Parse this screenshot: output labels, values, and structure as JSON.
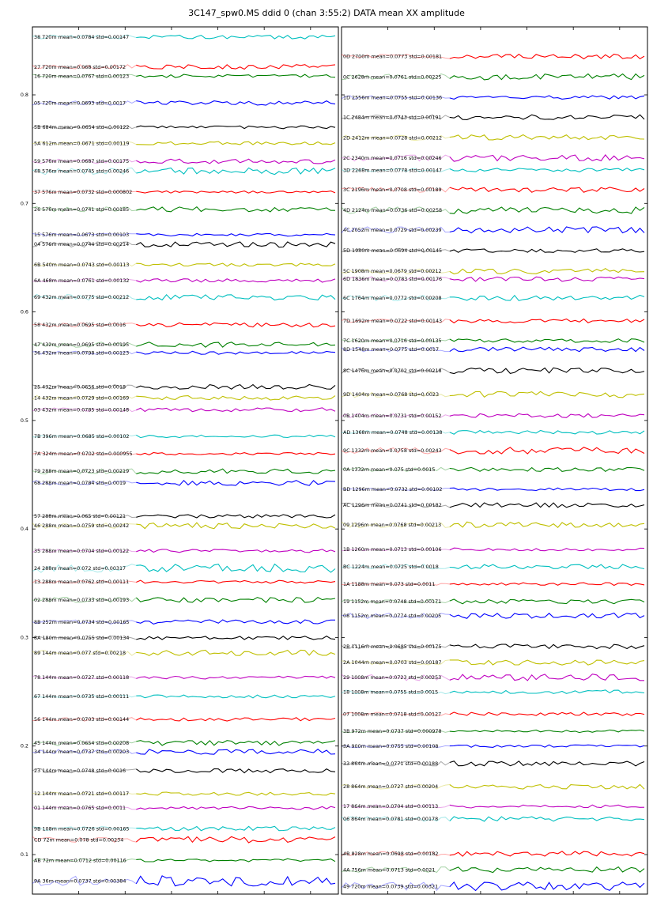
{
  "title": "3C147_spw0.MS ddid 0 (chan 3:55:2) DATA mean XX amplitude",
  "chart_data": {
    "type": "line",
    "title": "3C147_spw0.MS ddid 0 (chan 3:55:2) DATA mean XX amplitude",
    "ylabel": "",
    "xlabel": "",
    "grid": false,
    "legend": "inline labels at left of each trace",
    "y_ticks": [
      "0.1",
      "0.2",
      "0.3",
      "0.4",
      "0.5",
      "0.6",
      "0.7",
      "0.8"
    ],
    "color_cycle": [
      "#ff0000",
      "#008000",
      "#0000ff",
      "#000000",
      "#bfbf00",
      "#bf00bf",
      "#00bfbf"
    ],
    "panels": [
      {
        "panel": "left",
        "series": [
          {
            "name": "38 720m mean=0.0784 std=0.00147",
            "color": "#00bfbf",
            "y": 0.8534
          },
          {
            "name": "27 720m mean=0.068 std=0.00172",
            "color": "#ff0000",
            "y": 0.8258
          },
          {
            "name": "16 720m mean=0.0767 std=0.00123",
            "color": "#008000",
            "y": 0.8174
          },
          {
            "name": "05 720m mean=0.0693 std=0.0017",
            "color": "#0000ff",
            "y": 0.7924
          },
          {
            "name": "5B 684m mean=0.0654 std=0.00122",
            "color": "#000000",
            "y": 0.7701
          },
          {
            "name": "5A 612m mean=0.0671 std=0.00119",
            "color": "#bfbf00",
            "y": 0.7555
          },
          {
            "name": "59 576m mean=0.0687 std=0.00175",
            "color": "#bf00bf",
            "y": 0.7388
          },
          {
            "name": "48 576m mean=0.0745 std=0.00246",
            "color": "#00bfbf",
            "y": 0.7297
          },
          {
            "name": "37 576m mean=0.0732 std=0.000802",
            "color": "#ff0000",
            "y": 0.7105
          },
          {
            "name": "26 576m mean=0.0741 std=0.00185",
            "color": "#008000",
            "y": 0.6945
          },
          {
            "name": "15 576m mean=0.0673 std=0.00103",
            "color": "#0000ff",
            "y": 0.6711
          },
          {
            "name": "04 576m mean=0.0744 std=0.00214",
            "color": "#000000",
            "y": 0.6623
          },
          {
            "name": "6B 540m mean=0.0743 std=0.00113",
            "color": "#bfbf00",
            "y": 0.6434
          },
          {
            "name": "6A 468m mean=0.0761 std=0.00132",
            "color": "#bf00bf",
            "y": 0.6289
          },
          {
            "name": "69 432m mean=0.0775 std=0.00212",
            "color": "#00bfbf",
            "y": 0.6136
          },
          {
            "name": "58 432m mean=0.0695 std=0.0016",
            "color": "#ff0000",
            "y": 0.588
          },
          {
            "name": "47 432m mean=0.0695 std=0.00195",
            "color": "#008000",
            "y": 0.5698
          },
          {
            "name": "36 432m mean=0.0798 std=0.00123",
            "color": "#0000ff",
            "y": 0.5624
          },
          {
            "name": "25 432m mean=0.0656 std=0.0018",
            "color": "#000000",
            "y": 0.5311
          },
          {
            "name": "14 432m mean=0.0729 std=0.00169",
            "color": "#bfbf00",
            "y": 0.5209
          },
          {
            "name": "03 432m mean=0.0785 std=0.00148",
            "color": "#bf00bf",
            "y": 0.5099
          },
          {
            "name": "7B 396m mean=0.0685 std=0.00102",
            "color": "#00bfbf",
            "y": 0.4854
          },
          {
            "name": "7A 324m mean=0.0702 std=0.000955",
            "color": "#ff0000",
            "y": 0.4693
          },
          {
            "name": "79 288m mean=0.0723 std=0.00219",
            "color": "#008000",
            "y": 0.4533
          },
          {
            "name": "68 288m mean=0.0784 std=0.0019",
            "color": "#0000ff",
            "y": 0.4424
          },
          {
            "name": "57 288m mean=0.065 std=0.00121",
            "color": "#000000",
            "y": 0.4118
          },
          {
            "name": "46 288m mean=0.0759 std=0.00242",
            "color": "#bfbf00",
            "y": 0.4031
          },
          {
            "name": "35 288m mean=0.0704 std=0.00122",
            "color": "#bf00bf",
            "y": 0.3798
          },
          {
            "name": "24 288m mean=0.072 std=0.00317",
            "color": "#00bfbf",
            "y": 0.3638
          },
          {
            "name": "13 288m mean=0.0762 std=0.00111",
            "color": "#ff0000",
            "y": 0.3513
          },
          {
            "name": "02 288m mean=0.0733 std=0.00193",
            "color": "#008000",
            "y": 0.3347
          },
          {
            "name": "8B 252m mean=0.0734 std=0.00165",
            "color": "#0000ff",
            "y": 0.3143
          },
          {
            "name": "8A 180m mean=0.0755 std=0.00134",
            "color": "#000000",
            "y": 0.2997
          },
          {
            "name": "89 144m mean=0.077 std=0.00218",
            "color": "#bfbf00",
            "y": 0.2858
          },
          {
            "name": "78 144m mean=0.0727 std=0.00118",
            "color": "#bf00bf",
            "y": 0.2632
          },
          {
            "name": "67 144m mean=0.0735 std=0.00111",
            "color": "#00bfbf",
            "y": 0.2457
          },
          {
            "name": "56 144m mean=0.0703 std=0.00144",
            "color": "#ff0000",
            "y": 0.2247
          },
          {
            "name": "45 144m mean=0.0654 std=0.00208",
            "color": "#008000",
            "y": 0.2027
          },
          {
            "name": "34 144m mean=0.0737 std=0.00203",
            "color": "#0000ff",
            "y": 0.1947
          },
          {
            "name": "23 144m mean=0.0748 std=0.0016",
            "color": "#000000",
            "y": 0.1772
          },
          {
            "name": "12 144m mean=0.0721 std=0.00117",
            "color": "#bfbf00",
            "y": 0.1561
          },
          {
            "name": "01 144m mean=0.0765 std=0.0011",
            "color": "#bf00bf",
            "y": 0.143
          },
          {
            "name": "9B 108m mean=0.0726 std=0.00165",
            "color": "#00bfbf",
            "y": 0.124
          },
          {
            "name": "CD 72m mean=0.078 std=0.00234",
            "color": "#ff0000",
            "y": 0.1138
          },
          {
            "name": "AB 72m mean=0.0712 std=0.00116",
            "color": "#008000",
            "y": 0.0948
          },
          {
            "name": "9A 36m mean=0.0737 std=0.00384",
            "color": "#0000ff",
            "y": 0.0758
          }
        ]
      },
      {
        "panel": "right",
        "series": [
          {
            "name": "0D 2700m mean=0.0773 std=0.00181",
            "color": "#ff0000",
            "y": 0.8353
          },
          {
            "name": "0C 2628m mean=0.0761 std=0.00225",
            "color": "#008000",
            "y": 0.8166
          },
          {
            "name": "1D 2556m mean=0.0755 std=0.00136",
            "color": "#0000ff",
            "y": 0.7977
          },
          {
            "name": "1C 2484m mean=0.0743 std=0.00191",
            "color": "#000000",
            "y": 0.7795
          },
          {
            "name": "2D 2412m mean=0.0728 std=0.00212",
            "color": "#bfbf00",
            "y": 0.7606
          },
          {
            "name": "2C 2340m mean=0.0716 std=0.00246",
            "color": "#bf00bf",
            "y": 0.7417
          },
          {
            "name": "3D 2268m mean=0.0778 std=0.00147",
            "color": "#00bfbf",
            "y": 0.7307
          },
          {
            "name": "3C 2196m mean=0.0708 std=0.00189",
            "color": "#ff0000",
            "y": 0.7126
          },
          {
            "name": "4D 2124m mean=0.0736 std=0.00258",
            "color": "#008000",
            "y": 0.6937
          },
          {
            "name": "4C 2052m mean=0.0729 std=0.00239",
            "color": "#0000ff",
            "y": 0.6755
          },
          {
            "name": "5D 1980m mean=0.0694 std=0.00145",
            "color": "#000000",
            "y": 0.6566
          },
          {
            "name": "5C 1908m mean=0.0679 std=0.00212",
            "color": "#bfbf00",
            "y": 0.6376
          },
          {
            "name": "6D 1836m mean=0.0783 std=0.00176",
            "color": "#bf00bf",
            "y": 0.6303
          },
          {
            "name": "6C 1764m mean=0.0772 std=0.00208",
            "color": "#00bfbf",
            "y": 0.6128
          },
          {
            "name": "7D 1692m mean=0.0722 std=0.00143",
            "color": "#ff0000",
            "y": 0.5917
          },
          {
            "name": "7C 1620m mean=0.0716 std=0.00135",
            "color": "#008000",
            "y": 0.5735
          },
          {
            "name": "8D 1548m mean=0.0775 std=0.0017",
            "color": "#0000ff",
            "y": 0.5655
          },
          {
            "name": "8C 1476m mean=0.0702 std=0.00218",
            "color": "#000000",
            "y": 0.5459
          },
          {
            "name": "9D 1404m mean=0.0768 std=0.0023",
            "color": "#bfbf00",
            "y": 0.524
          },
          {
            "name": "0B 1404m mean=0.0731 std=0.00152",
            "color": "#bf00bf",
            "y": 0.5044
          },
          {
            "name": "AD 1368m mean=0.0748 std=0.00138",
            "color": "#00bfbf",
            "y": 0.4891
          },
          {
            "name": "9C 1332m mean=0.0758 std=0.00243",
            "color": "#ff0000",
            "y": 0.4723
          },
          {
            "name": "0A 1332m mean=0.075 std=0.0015",
            "color": "#008000",
            "y": 0.4548
          },
          {
            "name": "BD 1296m mean=0.0732 std=0.00102",
            "color": "#0000ff",
            "y": 0.4366
          },
          {
            "name": "AC 1296m mean=0.0741 std=0.00182",
            "color": "#000000",
            "y": 0.422
          },
          {
            "name": "09 1296m mean=0.0768 std=0.00213",
            "color": "#bfbf00",
            "y": 0.4038
          },
          {
            "name": "1B 1260m mean=0.0713 std=0.00106",
            "color": "#bf00bf",
            "y": 0.3812
          },
          {
            "name": "BC 1224m mean=0.0725 std=0.0018",
            "color": "#00bfbf",
            "y": 0.3653
          },
          {
            "name": "1A 1188m mean=0.073 std=0.0011",
            "color": "#ff0000",
            "y": 0.3492
          },
          {
            "name": "19 1152m mean=0.0748 std=0.00171",
            "color": "#008000",
            "y": 0.3332
          },
          {
            "name": "08 1152m mean=0.0774 std=0.00205",
            "color": "#0000ff",
            "y": 0.32
          },
          {
            "name": "2B 1116m mean=0.0685 std=0.00175",
            "color": "#000000",
            "y": 0.2916
          },
          {
            "name": "2A 1044m mean=0.0703 std=0.00187",
            "color": "#bfbf00",
            "y": 0.277
          },
          {
            "name": "29 1008m mean=0.0723 std=0.00253",
            "color": "#bf00bf",
            "y": 0.2632
          },
          {
            "name": "18 1008m mean=0.0755 std=0.0015",
            "color": "#00bfbf",
            "y": 0.25
          },
          {
            "name": "07 1008m mean=0.0718 std=0.00127",
            "color": "#ff0000",
            "y": 0.2296
          },
          {
            "name": "3B 972m mean=0.0737 std=0.000978",
            "color": "#008000",
            "y": 0.2136
          },
          {
            "name": "3A 900m mean=0.0755 std=0.00108",
            "color": "#0000ff",
            "y": 0.1998
          },
          {
            "name": "33 864m mean=0.0771 std=0.00188",
            "color": "#000000",
            "y": 0.1838
          },
          {
            "name": "28 864m mean=0.0727 std=0.00204",
            "color": "#bfbf00",
            "y": 0.1627
          },
          {
            "name": "17 864m mean=0.0704 std=0.00113",
            "color": "#bf00bf",
            "y": 0.1444
          },
          {
            "name": "06 864m mean=0.0781 std=0.00178",
            "color": "#00bfbf",
            "y": 0.1328
          },
          {
            "name": "4B 828m mean=0.0698 std=0.00182",
            "color": "#ff0000",
            "y": 0.1007
          },
          {
            "name": "4A 756m mean=0.0713 std=0.0021",
            "color": "#008000",
            "y": 0.086
          },
          {
            "name": "49 720m mean=0.0739 std=0.00321",
            "color": "#0000ff",
            "y": 0.0707
          }
        ]
      }
    ]
  }
}
